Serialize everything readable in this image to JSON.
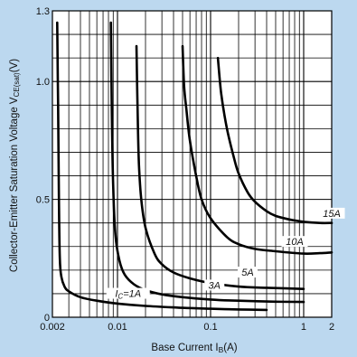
{
  "chart_data": {
    "type": "line",
    "title": "",
    "xlabel": "Base Current I",
    "xlabel_sub": "B",
    "xlabel_unit": "(A)",
    "ylabel": "Collector-Emitter Saturation Voltage V",
    "ylabel_sub": "CE(sat)",
    "ylabel_unit": "(V)",
    "x_scale": "log",
    "xlim": [
      0.002,
      2
    ],
    "ylim": [
      0,
      1.3
    ],
    "grid": true,
    "background": "#bcd8ef",
    "x_ticks": [
      {
        "value": 0.002,
        "label": "0.002"
      },
      {
        "value": 0.01,
        "label": "0.01"
      },
      {
        "value": 0.1,
        "label": "0.1"
      },
      {
        "value": 1,
        "label": "1"
      },
      {
        "value": 2,
        "label": "2"
      }
    ],
    "y_ticks": [
      {
        "value": 0,
        "label": "0"
      },
      {
        "value": 0.5,
        "label": "0.5"
      },
      {
        "value": 1.0,
        "label": "1.0"
      },
      {
        "value": 1.3,
        "label": "1.3"
      }
    ],
    "series": [
      {
        "name": "Ic=1A",
        "label_main": "I",
        "label_sub": "C",
        "label_rest": "=1A",
        "x": [
          0.00225,
          0.0023,
          0.00235,
          0.0024,
          0.0025,
          0.0027,
          0.003,
          0.004,
          0.006,
          0.01,
          0.02,
          0.05,
          0.1,
          0.2,
          0.4
        ],
        "y": [
          1.25,
          0.9,
          0.5,
          0.25,
          0.17,
          0.13,
          0.11,
          0.085,
          0.07,
          0.058,
          0.048,
          0.04,
          0.036,
          0.033,
          0.031
        ]
      },
      {
        "name": "3A",
        "label_main": "3A",
        "label_sub": "",
        "label_rest": "",
        "x": [
          0.0085,
          0.0087,
          0.009,
          0.0095,
          0.0105,
          0.012,
          0.015,
          0.02,
          0.03,
          0.05,
          0.1,
          0.2,
          0.5,
          1
        ],
        "y": [
          1.25,
          0.85,
          0.55,
          0.35,
          0.24,
          0.18,
          0.14,
          0.115,
          0.097,
          0.085,
          0.075,
          0.07,
          0.066,
          0.065
        ]
      },
      {
        "name": "5A",
        "label_main": "5A",
        "label_sub": "",
        "label_rest": "",
        "x": [
          0.016,
          0.0165,
          0.017,
          0.018,
          0.02,
          0.025,
          0.03,
          0.04,
          0.06,
          0.1,
          0.2,
          0.4,
          1
        ],
        "y": [
          1.15,
          0.85,
          0.65,
          0.5,
          0.38,
          0.27,
          0.225,
          0.19,
          0.165,
          0.145,
          0.13,
          0.125,
          0.12
        ]
      },
      {
        "name": "10A",
        "label_main": "10A",
        "label_sub": "",
        "label_rest": "",
        "x": [
          0.05,
          0.052,
          0.055,
          0.06,
          0.07,
          0.08,
          0.1,
          0.15,
          0.2,
          0.3,
          0.5,
          1,
          1.5,
          2
        ],
        "y": [
          1.15,
          0.98,
          0.88,
          0.75,
          0.6,
          0.5,
          0.42,
          0.34,
          0.31,
          0.29,
          0.28,
          0.27,
          0.272,
          0.275
        ]
      },
      {
        "name": "15A",
        "label_main": "15A",
        "label_sub": "",
        "label_rest": "",
        "x": [
          0.12,
          0.13,
          0.15,
          0.18,
          0.2,
          0.25,
          0.3,
          0.4,
          0.5,
          0.7,
          1,
          1.5,
          2
        ],
        "y": [
          1.1,
          0.95,
          0.8,
          0.67,
          0.61,
          0.53,
          0.49,
          0.45,
          0.43,
          0.415,
          0.405,
          0.4,
          0.4
        ]
      }
    ]
  }
}
